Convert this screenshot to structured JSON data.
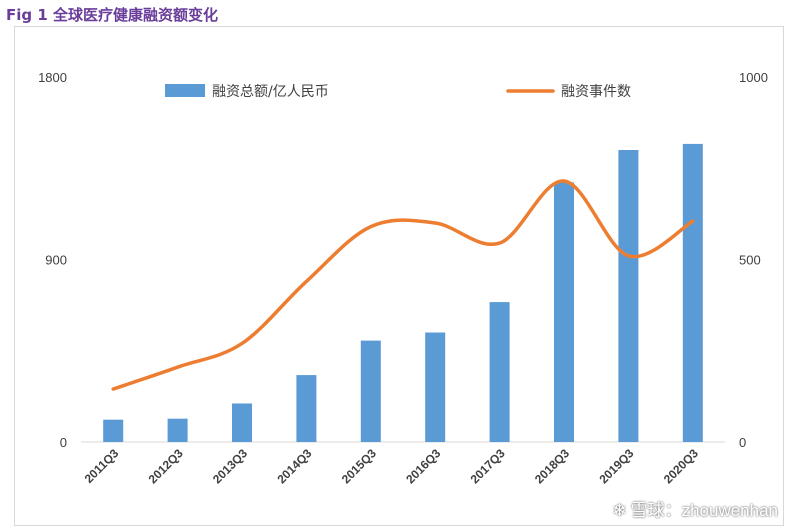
{
  "figure": {
    "title": "Fig 1 全球医疗健康融资额变化"
  },
  "watermark": {
    "text": "雪球：zhouwenhan",
    "icon": "snowball-logo-icon"
  },
  "colors": {
    "bar": "#5b9bd5",
    "line": "#ed7d31",
    "title": "#6a3d9a"
  },
  "chart_data": {
    "type": "bar+line",
    "categories": [
      "2011Q3",
      "2012Q3",
      "2013Q3",
      "2014Q3",
      "2015Q3",
      "2016Q3",
      "2017Q3",
      "2018Q3",
      "2019Q3",
      "2020Q3"
    ],
    "series": [
      {
        "name": "融资总额/亿人民币",
        "type": "bar",
        "axis": "left",
        "values": [
          110,
          115,
          190,
          330,
          500,
          540,
          690,
          1280,
          1440,
          1470
        ]
      },
      {
        "name": "融资事件数",
        "type": "line",
        "axis": "right",
        "smooth": true,
        "values": [
          145,
          205,
          270,
          440,
          590,
          600,
          545,
          715,
          510,
          605
        ]
      }
    ],
    "y_left": {
      "lim": [
        0,
        1800
      ],
      "ticks": [
        "0",
        "900",
        "1800"
      ]
    },
    "y_right": {
      "lim": [
        0,
        1000
      ],
      "ticks": [
        "0",
        "500",
        "1000"
      ]
    },
    "legend": "top-center",
    "grid": false
  }
}
